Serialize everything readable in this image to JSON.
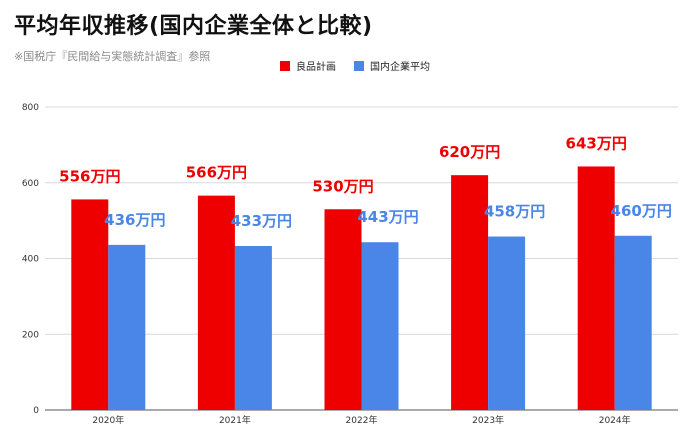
{
  "title": "平均年収推移(国内企業全体と比較)",
  "subtitle": "※国税庁『民間給与実態統計調査』参照",
  "chart_data": {
    "type": "bar",
    "categories": [
      "2020年",
      "2021年",
      "2022年",
      "2023年",
      "2024年"
    ],
    "series": [
      {
        "name": "良品計画",
        "values": [
          556,
          566,
          530,
          620,
          643
        ],
        "labels": [
          "556万円",
          "566万円",
          "530万円",
          "620万円",
          "643万円"
        ],
        "color": "#ee0000"
      },
      {
        "name": "国内企業平均",
        "values": [
          436,
          433,
          443,
          458,
          460
        ],
        "labels": [
          "436万円",
          "433万円",
          "443万円",
          "458万円",
          "460万円"
        ],
        "color": "#4a86e8"
      }
    ],
    "ylim": [
      0,
      800
    ],
    "yticks": [
      0,
      200,
      400,
      600,
      800
    ],
    "grid": true,
    "legend_position": "top"
  }
}
